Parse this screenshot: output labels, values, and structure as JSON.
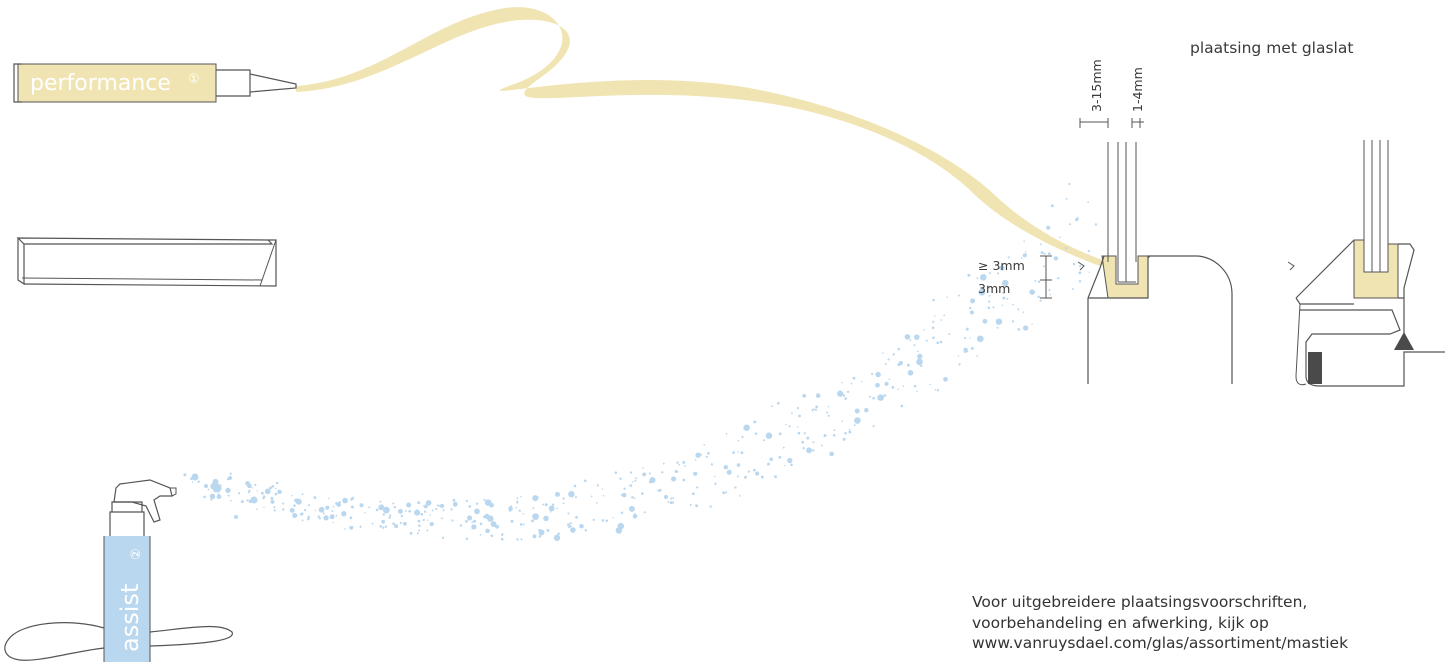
{
  "title": "plaatsing met glaslat",
  "tube_label": "performance",
  "tube_symbol": "①",
  "spray_label": "assist",
  "spray_symbol": "②",
  "dimensions": {
    "width_outer": "3-15mm",
    "width_inner": "1-4mm",
    "height_min": "≥ 3mm",
    "height": "3mm"
  },
  "footnote": [
    "Voor uitgebreidere plaatsingsvoorschriften,",
    "voorbehandeling en afwerking, kijk op",
    "www.vanruysdael.com/glas/assortiment/mastiek"
  ],
  "colors": {
    "sealant": "#f1e4b3",
    "spray": "#b9d7ef",
    "outline": "#555555",
    "seal_dark": "#4a4a4a"
  }
}
